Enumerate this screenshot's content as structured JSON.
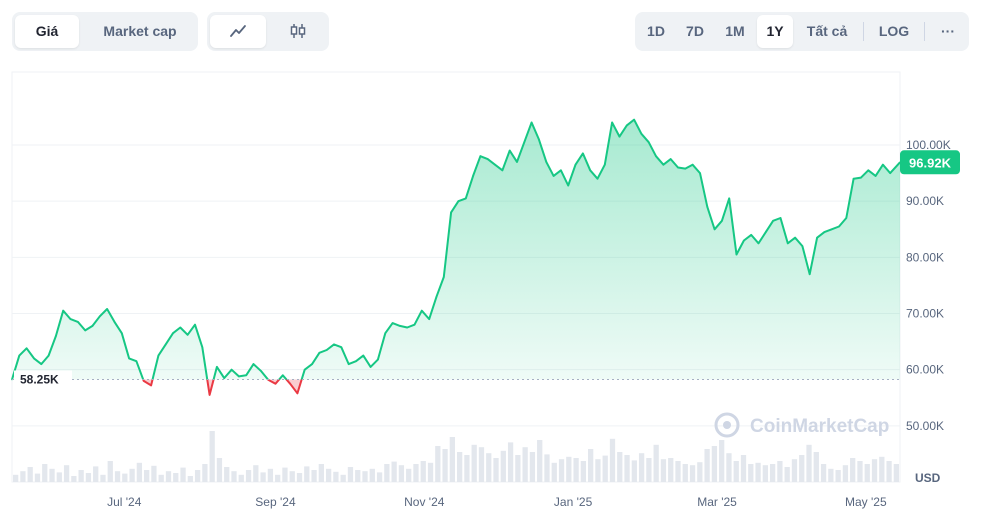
{
  "metric_toggle": {
    "options": [
      "Giá",
      "Market cap"
    ],
    "active": "Giá"
  },
  "chart_type_toggle": {
    "options": [
      "line-chart-icon",
      "candlestick-icon"
    ],
    "active": "line-chart-icon"
  },
  "range_toggle": {
    "options": [
      "1D",
      "7D",
      "1M",
      "1Y",
      "Tất cả"
    ],
    "active": "1Y",
    "log_label": "LOG",
    "more_label": "···"
  },
  "watermark": "CoinMarketCap",
  "colors": {
    "up": "#16c784",
    "down": "#ea3943",
    "fill_up": "#16c784",
    "label_bg": "#16c784"
  },
  "chart_data": {
    "type": "area",
    "title": "",
    "xlabel": "",
    "ylabel": "USD",
    "y_unit_label": "USD",
    "ylim": [
      40000,
      113000
    ],
    "y_ticks": [
      50000,
      60000,
      70000,
      80000,
      90000,
      100000
    ],
    "y_tick_labels": [
      "50.00K",
      "60.00K",
      "70.00K",
      "80.00K",
      "90.00K",
      "100.00K"
    ],
    "x_range": [
      "2024-05-16",
      "2025-05-15"
    ],
    "x_ticks": [
      "2024-07-01",
      "2024-09-01",
      "2024-11-01",
      "2025-01-01",
      "2025-03-01",
      "2025-05-01"
    ],
    "x_tick_labels": [
      "Jul '24",
      "Sep '24",
      "Nov '24",
      "Jan '25",
      "Mar '25",
      "May '25"
    ],
    "baseline": {
      "value": 58250,
      "label": "58.25K"
    },
    "current": {
      "value": 96920,
      "label": "96.92K"
    },
    "grid": true,
    "legend": "none",
    "series": [
      {
        "x": [
          "2024-05-16",
          "2024-05-19",
          "2024-05-22",
          "2024-05-25",
          "2024-05-28",
          "2024-05-31",
          "2024-06-03",
          "2024-06-06",
          "2024-06-09",
          "2024-06-12",
          "2024-06-15",
          "2024-06-18",
          "2024-06-21",
          "2024-06-24",
          "2024-06-27",
          "2024-06-30",
          "2024-07-03",
          "2024-07-06",
          "2024-07-09",
          "2024-07-12",
          "2024-07-15",
          "2024-07-18",
          "2024-07-21",
          "2024-07-24",
          "2024-07-27",
          "2024-07-30",
          "2024-08-02",
          "2024-08-05",
          "2024-08-08",
          "2024-08-11",
          "2024-08-14",
          "2024-08-17",
          "2024-08-20",
          "2024-08-23",
          "2024-08-26",
          "2024-08-29",
          "2024-09-01",
          "2024-09-04",
          "2024-09-07",
          "2024-09-10",
          "2024-09-13",
          "2024-09-16",
          "2024-09-19",
          "2024-09-22",
          "2024-09-25",
          "2024-09-28",
          "2024-10-01",
          "2024-10-04",
          "2024-10-07",
          "2024-10-10",
          "2024-10-13",
          "2024-10-16",
          "2024-10-19",
          "2024-10-22",
          "2024-10-25",
          "2024-10-28",
          "2024-10-31",
          "2024-11-03",
          "2024-11-06",
          "2024-11-09",
          "2024-11-12",
          "2024-11-15",
          "2024-11-18",
          "2024-11-21",
          "2024-11-24",
          "2024-11-27",
          "2024-11-30",
          "2024-12-03",
          "2024-12-06",
          "2024-12-09",
          "2024-12-12",
          "2024-12-15",
          "2024-12-18",
          "2024-12-21",
          "2024-12-24",
          "2024-12-27",
          "2024-12-30",
          "2025-01-02",
          "2025-01-05",
          "2025-01-08",
          "2025-01-11",
          "2025-01-14",
          "2025-01-17",
          "2025-01-20",
          "2025-01-23",
          "2025-01-26",
          "2025-01-29",
          "2025-02-01",
          "2025-02-04",
          "2025-02-07",
          "2025-02-10",
          "2025-02-13",
          "2025-02-16",
          "2025-02-19",
          "2025-02-22",
          "2025-02-25",
          "2025-02-28",
          "2025-03-03",
          "2025-03-06",
          "2025-03-09",
          "2025-03-12",
          "2025-03-15",
          "2025-03-18",
          "2025-03-21",
          "2025-03-24",
          "2025-03-27",
          "2025-03-30",
          "2025-04-02",
          "2025-04-05",
          "2025-04-08",
          "2025-04-11",
          "2025-04-14",
          "2025-04-17",
          "2025-04-20",
          "2025-04-23",
          "2025-04-26",
          "2025-04-29",
          "2025-05-02",
          "2025-05-05",
          "2025-05-08",
          "2025-05-11",
          "2025-05-15"
        ],
        "values": [
          58250,
          62500,
          63800,
          62000,
          61000,
          62500,
          66000,
          70500,
          69000,
          68500,
          67000,
          67800,
          69500,
          70800,
          68500,
          66500,
          62000,
          61500,
          58000,
          57200,
          62500,
          64500,
          66500,
          67500,
          66200,
          68000,
          64000,
          55500,
          60500,
          58500,
          60000,
          58800,
          59000,
          61000,
          59800,
          58200,
          57500,
          59000,
          57500,
          55800,
          60000,
          61000,
          63000,
          63500,
          64500,
          64000,
          61000,
          61500,
          62500,
          60500,
          61800,
          66500,
          68300,
          67800,
          67500,
          68000,
          70500,
          69000,
          73000,
          76500,
          88000,
          90000,
          90500,
          94500,
          98000,
          97500,
          96500,
          95500,
          99000,
          97000,
          100500,
          104000,
          101000,
          97000,
          94500,
          95500,
          92800,
          96500,
          98500,
          95500,
          94000,
          96500,
          104000,
          101500,
          103500,
          104500,
          102000,
          100500,
          98000,
          96500,
          97500,
          96000,
          95800,
          96500,
          95000,
          89000,
          85000,
          86500,
          90500,
          80500,
          83000,
          84000,
          82500,
          84500,
          86500,
          87000,
          82500,
          83500,
          82000,
          77000,
          83500,
          84500,
          85000,
          85500,
          87000,
          94000,
          94200,
          95500,
          94500,
          96500,
          95000,
          96920
        ]
      }
    ],
    "volume": {
      "note": "relative bar heights, 0-1",
      "values": [
        0.12,
        0.18,
        0.25,
        0.14,
        0.3,
        0.22,
        0.16,
        0.28,
        0.1,
        0.2,
        0.15,
        0.26,
        0.12,
        0.35,
        0.18,
        0.14,
        0.22,
        0.32,
        0.2,
        0.27,
        0.12,
        0.18,
        0.15,
        0.24,
        0.1,
        0.2,
        0.3,
        0.85,
        0.4,
        0.25,
        0.18,
        0.12,
        0.2,
        0.28,
        0.16,
        0.22,
        0.12,
        0.24,
        0.18,
        0.15,
        0.26,
        0.2,
        0.3,
        0.22,
        0.17,
        0.12,
        0.25,
        0.2,
        0.18,
        0.22,
        0.16,
        0.3,
        0.34,
        0.28,
        0.22,
        0.3,
        0.35,
        0.32,
        0.6,
        0.55,
        0.75,
        0.5,
        0.45,
        0.62,
        0.58,
        0.48,
        0.4,
        0.52,
        0.66,
        0.45,
        0.58,
        0.5,
        0.7,
        0.46,
        0.32,
        0.38,
        0.42,
        0.4,
        0.35,
        0.55,
        0.38,
        0.44,
        0.72,
        0.5,
        0.45,
        0.36,
        0.48,
        0.4,
        0.62,
        0.38,
        0.4,
        0.35,
        0.3,
        0.28,
        0.33,
        0.55,
        0.6,
        0.7,
        0.48,
        0.35,
        0.45,
        0.3,
        0.32,
        0.28,
        0.3,
        0.35,
        0.25,
        0.38,
        0.45,
        0.62,
        0.5,
        0.3,
        0.22,
        0.2,
        0.28,
        0.4,
        0.35,
        0.3,
        0.38,
        0.42,
        0.35,
        0.3
      ]
    }
  }
}
